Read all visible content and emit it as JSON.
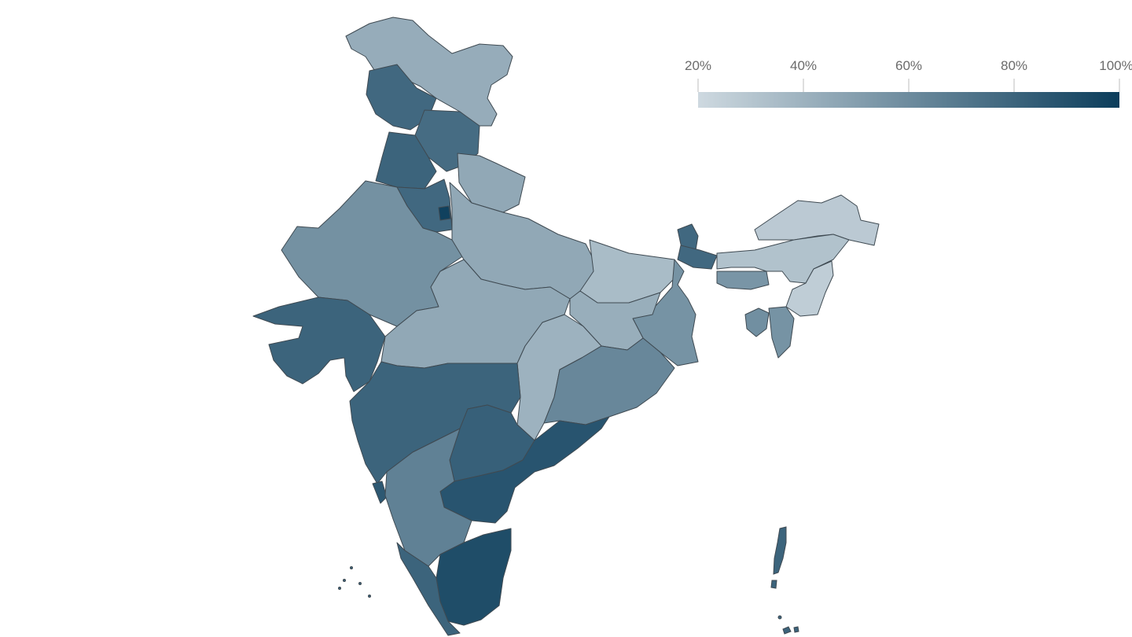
{
  "legend": {
    "tick_labels": [
      "20%",
      "40%",
      "60%",
      "80%",
      "100%"
    ],
    "tick_values": [
      20,
      40,
      60,
      80,
      100
    ],
    "range": [
      20,
      100
    ],
    "color_low": "#ced9e0",
    "color_high": "#0b3d5b",
    "placement": "top-right"
  },
  "colors": {
    "border": "#3f4a52",
    "background": "#ffffff"
  },
  "regions": [
    {
      "name": "jammu-kashmir-ladakh",
      "value": 43
    },
    {
      "name": "himachal",
      "value": 78
    },
    {
      "name": "punjab",
      "value": 80
    },
    {
      "name": "uttarakhand",
      "value": 76
    },
    {
      "name": "haryana",
      "value": 78
    },
    {
      "name": "delhi",
      "value": 98
    },
    {
      "name": "rajasthan",
      "value": 57
    },
    {
      "name": "uttar-pradesh",
      "value": 45
    },
    {
      "name": "bihar",
      "value": 35
    },
    {
      "name": "sikkim",
      "value": 78
    },
    {
      "name": "west-bengal",
      "value": 56
    },
    {
      "name": "assam",
      "value": 32
    },
    {
      "name": "arunachal",
      "value": 28
    },
    {
      "name": "meghalaya",
      "value": 55
    },
    {
      "name": "manipur-mizoram",
      "value": 26
    },
    {
      "name": "tripura",
      "value": 58
    },
    {
      "name": "gujarat",
      "value": 80
    },
    {
      "name": "madhya-pradesh",
      "value": 45
    },
    {
      "name": "jharkhand",
      "value": 42
    },
    {
      "name": "chhattisgarh",
      "value": 40
    },
    {
      "name": "odisha",
      "value": 62
    },
    {
      "name": "maharashtra",
      "value": 80
    },
    {
      "name": "telangana",
      "value": 82
    },
    {
      "name": "andhra-pradesh",
      "value": 88
    },
    {
      "name": "goa",
      "value": 86
    },
    {
      "name": "karnataka",
      "value": 65
    },
    {
      "name": "tamil-nadu",
      "value": 92
    },
    {
      "name": "kerala",
      "value": 80
    },
    {
      "name": "andaman-nicobar",
      "value": 80
    }
  ]
}
